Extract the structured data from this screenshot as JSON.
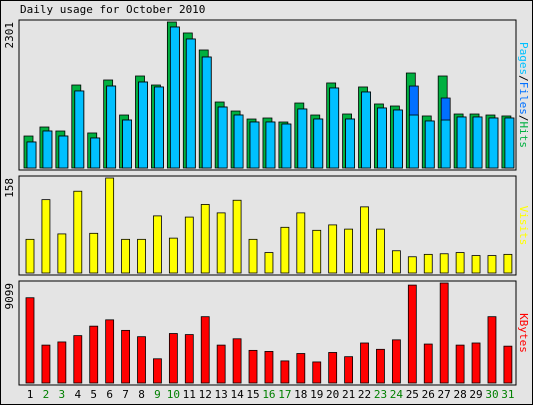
{
  "chart_data": [
    {
      "type": "bar",
      "title": "Daily usage for October 2010",
      "ylim": [
        0,
        2301
      ],
      "yticks": [
        2301
      ],
      "legend_separator": "/",
      "series": [
        {
          "name": "Hits",
          "color": "#00b040",
          "values": [
            504,
            646,
            583,
            1308,
            552,
            1387,
            835,
            1450,
            1308,
            2301,
            2128,
            1860,
            1040,
            898,
            772,
            788,
            725,
            1024,
            835,
            1340,
            851,
            1277,
            1009,
            977,
            1497,
            820,
            1450,
            851,
            851,
            835,
            820
          ]
        },
        {
          "name": "Files",
          "color": "#0070ff",
          "values": [
            410,
            583,
            504,
            1214,
            473,
            1292,
            756,
            1355,
            1277,
            2222,
            2033,
            1749,
            961,
            835,
            725,
            725,
            693,
            930,
            772,
            1261,
            772,
            1198,
            946,
            914,
            1292,
            741,
            1103,
            804,
            804,
            788,
            788
          ]
        },
        {
          "name": "Pages",
          "color": "#00c0ff",
          "values": [
            410,
            583,
            504,
            1214,
            473,
            1292,
            756,
            1355,
            1277,
            2222,
            2033,
            1749,
            961,
            835,
            725,
            725,
            693,
            930,
            772,
            1261,
            772,
            1198,
            946,
            914,
            835,
            741,
            756,
            804,
            804,
            788,
            788
          ]
        }
      ]
    },
    {
      "type": "bar",
      "ylim": [
        0,
        158
      ],
      "yticks": [
        158
      ],
      "series": [
        {
          "name": "Visits",
          "color": "#ffff00",
          "values": [
            56,
            122,
            65,
            136,
            66,
            158,
            56,
            56,
            95,
            58,
            93,
            114,
            100,
            121,
            56,
            34,
            76,
            100,
            71,
            80,
            73,
            110,
            73,
            37,
            27,
            31,
            32,
            34,
            29,
            29,
            31
          ]
        }
      ]
    },
    {
      "type": "bar",
      "ylim": [
        0,
        9099
      ],
      "yticks": [
        9099
      ],
      "categories": [
        "1",
        "2",
        "3",
        "4",
        "5",
        "6",
        "7",
        "8",
        "9",
        "10",
        "11",
        "12",
        "13",
        "14",
        "15",
        "16",
        "17",
        "18",
        "19",
        "20",
        "21",
        "22",
        "23",
        "24",
        "25",
        "26",
        "27",
        "28",
        "29",
        "30",
        "31"
      ],
      "category_colors": [
        "#000",
        "#008000",
        "#008000",
        "#000",
        "#000",
        "#000",
        "#000",
        "#000",
        "#008000",
        "#008000",
        "#000",
        "#000",
        "#000",
        "#000",
        "#000",
        "#008000",
        "#008000",
        "#000",
        "#000",
        "#000",
        "#000",
        "#000",
        "#008000",
        "#008000",
        "#000",
        "#000",
        "#000",
        "#000",
        "#000",
        "#008000",
        "#008000"
      ],
      "series": [
        {
          "name": "KBytes",
          "color": "#ff0000",
          "values": [
            7758,
            3448,
            3735,
            4310,
            5172,
            5747,
            4789,
            4214,
            2203,
            4502,
            4406,
            6034,
            3448,
            4023,
            2969,
            2873,
            2011,
            2682,
            1916,
            2778,
            2395,
            3640,
            3065,
            3927,
            8908,
            3544,
            9099,
            3448,
            3640,
            6034,
            3352
          ]
        }
      ]
    }
  ]
}
